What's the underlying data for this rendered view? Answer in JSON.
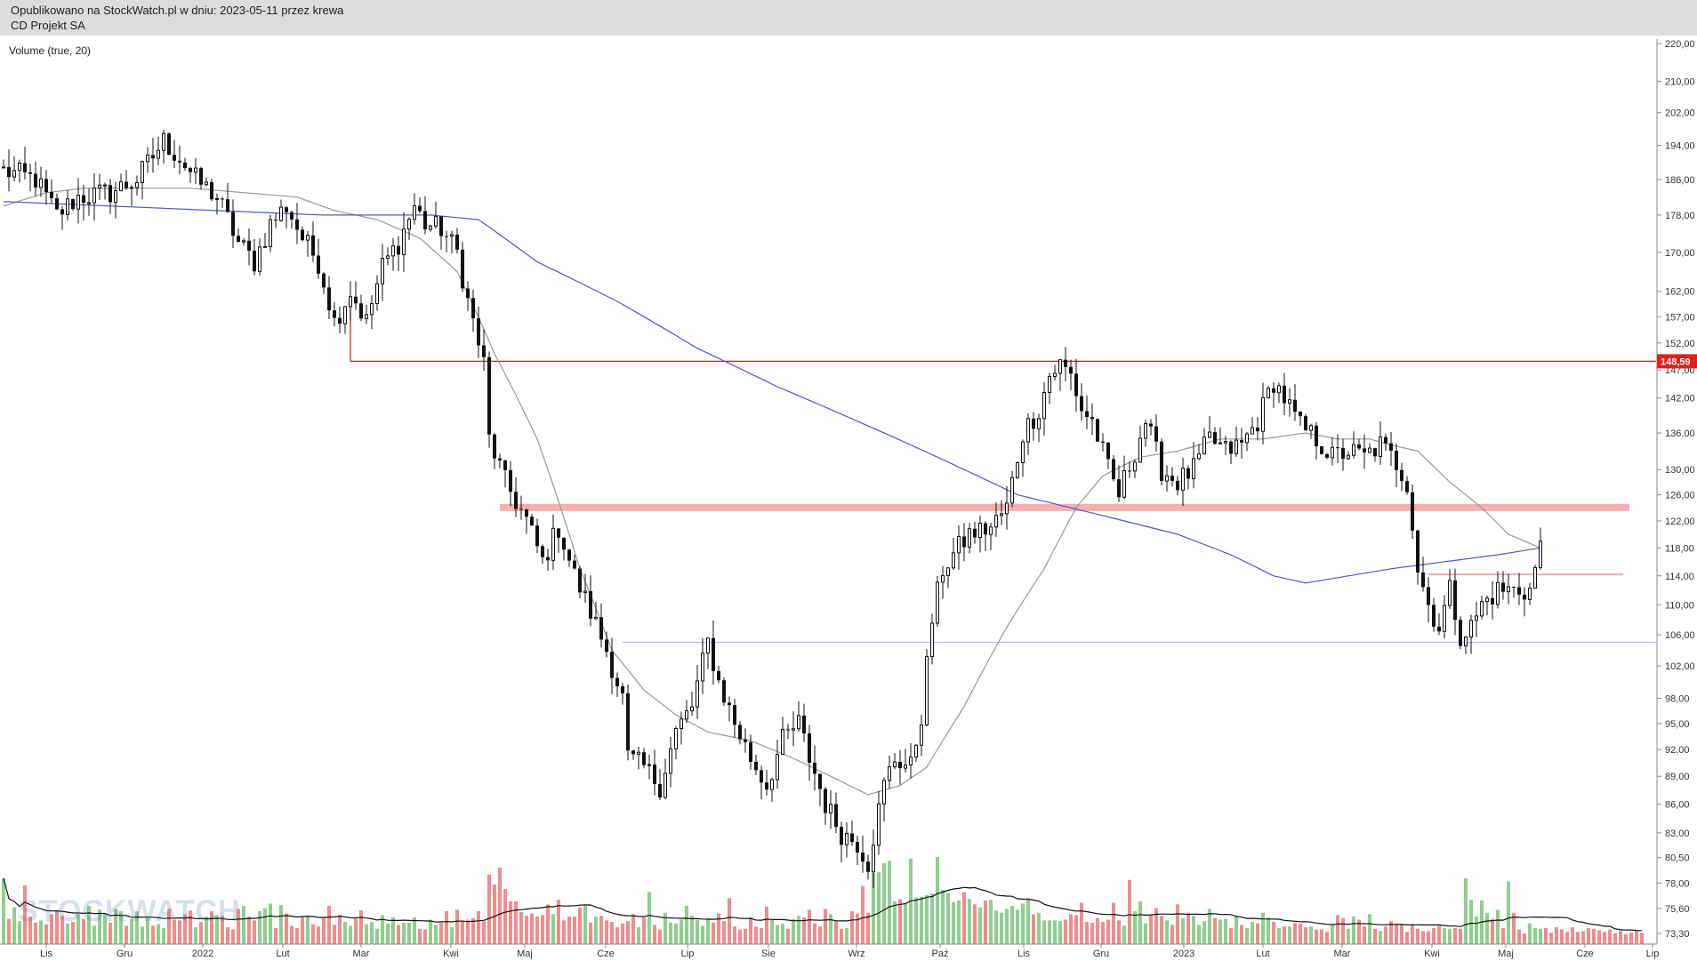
{
  "header": {
    "published": "Opublikowano na StockWatch.pl w dniu: 2023-05-11 przez krewa",
    "company": "CD Projekt SA"
  },
  "indicator_label": "Volume (true, 20)",
  "watermark": "STOCKWATCH",
  "price_tag": "148,59",
  "colors": {
    "bull": "#8fcf8f",
    "bear": "#f08c8c",
    "candle": "#111111",
    "ma_short": "#999999",
    "ma_long": "#5555d0",
    "resistance": "#cc2222",
    "zone": "#f4b0b0",
    "support": "#aab0ee",
    "volume_ma": "#111111"
  },
  "chart_data": {
    "type": "candlestick",
    "title": "CD Projekt SA",
    "y_ticks": [
      "220,00",
      "210,00",
      "202,00",
      "194,00",
      "186,00",
      "178,00",
      "170,00",
      "162,00",
      "157,00",
      "152,00",
      "147,00",
      "142,00",
      "136,00",
      "130,00",
      "126,00",
      "122,00",
      "118,00",
      "114,00",
      "110,00",
      "106,00",
      "102,00",
      "98,00",
      "95,00",
      "92,00",
      "89,00",
      "86,00",
      "83,00",
      "80,50",
      "78,00",
      "75,60",
      "73,30"
    ],
    "x_ticks": [
      "Lis",
      "Gru",
      "2022",
      "Lut",
      "Mar",
      "Kwi",
      "Maj",
      "Cze",
      "Lip",
      "Sie",
      "Wrz",
      "Paź",
      "Lis",
      "Gru",
      "2023",
      "Lut",
      "Mar",
      "Kwi",
      "Maj",
      "Cze",
      "Lip"
    ],
    "ylim": [
      72,
      222
    ],
    "y_scale": "log",
    "overlays": {
      "resistance_line": 148.59,
      "resistance_zone": [
        123.5,
        124.6
      ],
      "minor_resistance": 114.2,
      "support_line": 105.0
    },
    "price_path": [
      [
        0,
        188
      ],
      [
        6,
        186
      ],
      [
        10,
        178
      ],
      [
        14,
        182
      ],
      [
        20,
        183
      ],
      [
        25,
        186
      ],
      [
        30,
        195
      ],
      [
        33,
        191
      ],
      [
        36,
        186
      ],
      [
        40,
        182
      ],
      [
        44,
        172
      ],
      [
        47,
        168
      ],
      [
        50,
        176
      ],
      [
        53,
        180
      ],
      [
        56,
        173
      ],
      [
        59,
        168
      ],
      [
        62,
        156
      ],
      [
        65,
        162
      ],
      [
        68,
        156
      ],
      [
        71,
        167
      ],
      [
        74,
        172
      ],
      [
        77,
        180
      ],
      [
        79,
        176
      ],
      [
        82,
        175
      ],
      [
        85,
        170
      ],
      [
        87,
        160
      ],
      [
        90,
        148
      ],
      [
        91,
        135
      ],
      [
        94,
        128
      ],
      [
        98,
        122
      ],
      [
        101,
        116
      ],
      [
        104,
        121
      ],
      [
        107,
        114
      ],
      [
        110,
        109
      ],
      [
        113,
        104
      ],
      [
        116,
        98
      ],
      [
        117,
        91
      ],
      [
        120,
        90
      ],
      [
        123,
        88
      ],
      [
        126,
        94
      ],
      [
        129,
        97
      ],
      [
        132,
        105
      ],
      [
        134,
        100
      ],
      [
        137,
        95
      ],
      [
        140,
        91
      ],
      [
        143,
        88
      ],
      [
        146,
        93
      ],
      [
        149,
        95
      ],
      [
        151,
        91
      ],
      [
        154,
        86
      ],
      [
        157,
        83
      ],
      [
        160,
        82
      ],
      [
        162,
        80
      ],
      [
        165,
        88
      ],
      [
        167,
        91
      ],
      [
        170,
        90
      ],
      [
        172,
        96
      ],
      [
        174,
        108
      ],
      [
        176,
        115
      ],
      [
        178,
        117
      ],
      [
        181,
        120
      ],
      [
        185,
        121
      ],
      [
        188,
        124
      ],
      [
        191,
        136
      ],
      [
        194,
        140
      ],
      [
        196,
        146
      ],
      [
        198,
        148
      ],
      [
        200,
        146
      ],
      [
        202,
        140
      ],
      [
        204,
        138
      ],
      [
        207,
        130
      ],
      [
        209,
        126
      ],
      [
        212,
        133
      ],
      [
        214,
        138
      ],
      [
        217,
        130
      ],
      [
        220,
        128
      ],
      [
        223,
        130
      ],
      [
        226,
        135
      ],
      [
        229,
        133
      ],
      [
        232,
        134
      ],
      [
        235,
        138
      ],
      [
        238,
        145
      ],
      [
        240,
        142
      ],
      [
        243,
        137
      ],
      [
        246,
        135
      ],
      [
        249,
        132
      ],
      [
        252,
        133
      ],
      [
        255,
        132
      ],
      [
        258,
        134
      ],
      [
        261,
        131
      ],
      [
        263,
        128
      ],
      [
        265,
        115
      ],
      [
        267,
        110
      ],
      [
        269,
        107
      ],
      [
        271,
        112
      ],
      [
        273,
        106
      ],
      [
        275,
        107
      ],
      [
        277,
        110
      ],
      [
        280,
        112
      ],
      [
        283,
        112
      ],
      [
        286,
        112
      ],
      [
        288,
        118
      ]
    ],
    "ma_short_path": [
      [
        0,
        180
      ],
      [
        8,
        183
      ],
      [
        15,
        184
      ],
      [
        25,
        184
      ],
      [
        35,
        184
      ],
      [
        45,
        183
      ],
      [
        55,
        182
      ],
      [
        62,
        179
      ],
      [
        70,
        177
      ],
      [
        78,
        173
      ],
      [
        85,
        166
      ],
      [
        92,
        150
      ],
      [
        100,
        135
      ],
      [
        108,
        115
      ],
      [
        114,
        104
      ],
      [
        120,
        99
      ],
      [
        126,
        96
      ],
      [
        132,
        94
      ],
      [
        140,
        93
      ],
      [
        148,
        91
      ],
      [
        155,
        89
      ],
      [
        162,
        87
      ],
      [
        168,
        88
      ],
      [
        173,
        90
      ],
      [
        180,
        97
      ],
      [
        188,
        107
      ],
      [
        195,
        115
      ],
      [
        201,
        124
      ],
      [
        206,
        129
      ],
      [
        213,
        132
      ],
      [
        220,
        133
      ],
      [
        228,
        135
      ],
      [
        236,
        135
      ],
      [
        244,
        136
      ],
      [
        250,
        135
      ],
      [
        256,
        135
      ],
      [
        260,
        134
      ],
      [
        265,
        133
      ],
      [
        271,
        128
      ],
      [
        277,
        124
      ],
      [
        282,
        120
      ],
      [
        288,
        118
      ]
    ],
    "ma_long_path": [
      [
        0,
        181
      ],
      [
        20,
        180
      ],
      [
        40,
        179
      ],
      [
        60,
        178
      ],
      [
        80,
        178
      ],
      [
        89,
        177
      ],
      [
        100,
        168
      ],
      [
        115,
        160
      ],
      [
        130,
        151
      ],
      [
        145,
        144
      ],
      [
        160,
        138
      ],
      [
        175,
        132
      ],
      [
        190,
        126
      ],
      [
        205,
        123
      ],
      [
        220,
        120
      ],
      [
        230,
        117
      ],
      [
        238,
        114
      ],
      [
        244,
        113
      ],
      [
        252,
        114
      ],
      [
        260,
        115
      ],
      [
        270,
        116
      ],
      [
        280,
        117
      ],
      [
        288,
        118
      ]
    ],
    "volume_values": [
      86,
      33,
      48,
      30,
      77,
      36,
      28,
      31,
      26,
      39,
      44,
      37,
      27,
      29,
      39,
      33,
      50,
      24,
      45,
      40,
      28,
      46,
      43,
      24,
      33,
      43,
      23,
      34,
      24,
      26,
      21,
      46,
      31,
      31,
      39,
      44,
      22,
      29,
      36,
      43,
      38,
      37,
      22,
      19,
      46,
      50,
      36,
      31,
      43,
      47,
      53,
      21,
      51,
      40,
      24,
      21,
      35,
      37,
      26,
      23,
      34,
      50,
      25,
      38,
      29,
      24,
      33,
      44,
      26,
      29,
      20,
      38,
      27,
      35,
      25,
      28,
      28,
      35,
      20,
      19,
      32,
      25,
      28,
      43,
      22,
      45,
      31,
      32,
      34,
      43,
      30,
      91,
      78,
      100,
      72,
      56,
      56,
      42,
      37,
      40,
      36,
      38,
      52,
      39,
      58,
      31,
      36,
      36,
      48,
      50,
      28,
      36,
      37,
      31,
      29,
      22,
      27,
      30,
      39,
      22,
      35,
      68,
      25,
      19,
      41,
      28,
      27,
      32,
      50,
      37,
      32,
      24,
      34,
      28,
      40,
      30,
      60,
      23,
      19,
      20,
      35,
      23,
      21,
      49,
      32,
      25,
      27,
      20,
      33,
      37,
      35,
      45,
      27,
      23,
      46,
      39,
      30,
      20,
      21,
      43,
      40,
      76,
      41,
      93,
      94,
      106,
      109,
      56,
      59,
      53,
      112,
      61,
      62,
      64,
      66,
      114,
      71,
      67,
      55,
      57,
      68,
      59,
      52,
      48,
      57,
      58,
      44,
      41,
      46,
      50,
      45,
      53,
      60,
      39,
      41,
      31,
      31,
      31,
      30,
      32,
      39,
      38,
      54,
      29,
      28,
      34,
      29,
      32,
      54,
      31,
      24,
      84,
      43,
      56,
      27,
      38,
      47,
      37,
      31,
      25,
      52,
      34,
      41,
      37,
      25,
      30,
      46,
      34,
      32,
      33,
      21,
      37,
      25,
      21,
      29,
      27,
      41,
      35,
      29,
      21,
      23,
      23,
      28,
      27,
      22,
      23,
      19,
      19,
      16,
      26,
      38,
      34,
      20,
      36,
      32,
      23,
      39,
      20,
      17,
      23,
      30,
      25,
      25,
      16,
      26,
      20,
      17,
      17,
      21,
      24,
      21,
      20,
      21,
      20,
      86,
      58,
      36,
      57,
      41,
      33,
      45,
      21,
      82,
      41,
      19,
      14,
      27,
      21,
      20,
      21,
      15,
      22,
      19,
      16,
      22,
      16,
      17,
      21,
      20,
      18,
      16,
      19,
      14,
      17,
      13,
      15,
      17,
      15
    ]
  }
}
